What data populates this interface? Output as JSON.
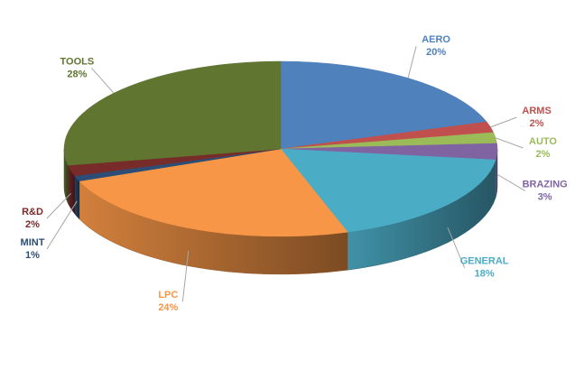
{
  "chart_data": {
    "type": "pie",
    "categories": [
      "AERO",
      "ARMS",
      "AUTO",
      "BRAZING",
      "GENERAL",
      "LPC",
      "MINT",
      "R&D",
      "TOOLS"
    ],
    "values": [
      20,
      2,
      2,
      3,
      18,
      24,
      1,
      2,
      28
    ],
    "value_labels": [
      "20%",
      "2%",
      "2%",
      "3%",
      "18%",
      "24%",
      "1%",
      "2%",
      "28%"
    ],
    "colors": [
      "#4f81bd",
      "#c0504d",
      "#9bbb59",
      "#8064a2",
      "#4bacc6",
      "#f79646",
      "#2c4d75",
      "#772c2a",
      "#5f7530"
    ]
  }
}
